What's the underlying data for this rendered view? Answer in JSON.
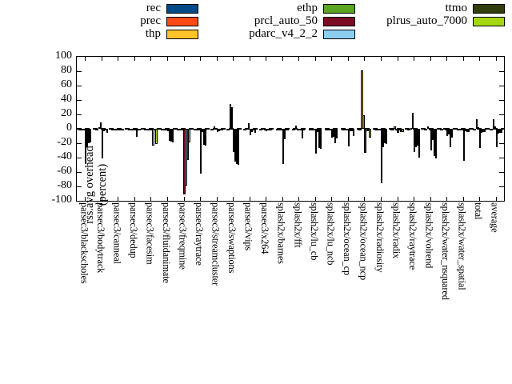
{
  "legend": {
    "columns": [
      [
        "rec",
        "prec",
        "thp"
      ],
      [
        "ethp",
        "prcl_auto_50",
        "pdarc_v4_2_2"
      ],
      [
        "ttmo",
        "plrus_auto_7000"
      ]
    ]
  },
  "axis": {
    "ylabel_line1": "rss.avg overhead",
    "ylabel_line2": "(percent)"
  },
  "chart_data": {
    "type": "bar",
    "title": "",
    "ylabel": "rss.avg overhead (percent)",
    "ylim": [
      -100,
      100
    ],
    "yticks": [
      100,
      80,
      60,
      40,
      20,
      0,
      -20,
      -40,
      -60,
      -80,
      -100
    ],
    "grid": false,
    "zero_line": "dashed",
    "legend_position": "top",
    "categories": [
      "parsec3/blackscholes",
      "parsec3/bodytrack",
      "parsec3/canneal",
      "parsec3/dedup",
      "parsec3/facesim",
      "parsec3/fluidanimate",
      "parsec3/freqmine",
      "parsec3/raytrace",
      "parsec3/streamcluster",
      "parsec3/swaptions",
      "parsec3/vips",
      "parsec3/x264",
      "splash2x/barnes",
      "splash2x/fft",
      "splash2x/lu_cb",
      "splash2x/lu_ncb",
      "splash2x/ocean_cp",
      "splash2x/ocean_ncp",
      "splash2x/radiosity",
      "splash2x/radix",
      "splash2x/raytrace",
      "splash2x/volrend",
      "splash2x/water_nsquared",
      "splash2x/water_spatial",
      "total",
      "average"
    ],
    "series": [
      {
        "name": "rec",
        "color": "#004a87",
        "values": [
          -2,
          -1,
          -1,
          -1,
          -1,
          -1,
          -2,
          -2,
          -1,
          -2,
          -1,
          -1,
          -1,
          -1,
          -1,
          -1,
          -2,
          -2,
          -2,
          -1,
          -2,
          -1,
          -1,
          -1,
          -1,
          -1
        ]
      },
      {
        "name": "prec",
        "color": "#fb4a14",
        "values": [
          -2,
          -1,
          -1,
          -1,
          -1,
          -1,
          -2,
          -2,
          -1,
          -2,
          -1,
          -1,
          -1,
          -1,
          -1,
          -1,
          -2,
          -2,
          -2,
          -1,
          -2,
          -1,
          -1,
          -1,
          -1,
          -1
        ]
      },
      {
        "name": "thp",
        "color": "#fdc328",
        "values": [
          -2,
          2,
          -1,
          -1,
          -1,
          -1,
          -2,
          -2,
          3,
          34,
          1,
          1,
          -1,
          4,
          -1,
          -1,
          -2,
          81,
          -2,
          3,
          1,
          3,
          1,
          -1,
          13,
          13
        ]
      },
      {
        "name": "ethp",
        "color": "#59a420",
        "values": [
          -2,
          9,
          -1,
          -1,
          -1,
          -1,
          -2,
          -2,
          1,
          30,
          8,
          -1,
          -1,
          -1,
          -1,
          -1,
          -2,
          19,
          -2,
          -1,
          22,
          -1,
          -1,
          -1,
          2,
          3
        ]
      },
      {
        "name": "prcl_auto_50",
        "color": "#7c0c23",
        "values": [
          -49,
          -41,
          -2,
          -2,
          -2,
          -3,
          -91,
          -62,
          -4,
          -32,
          -9,
          -3,
          -49,
          -2,
          -34,
          -12,
          -24,
          -33,
          -76,
          -6,
          -32,
          -30,
          -10,
          -44,
          -27,
          -26
        ]
      },
      {
        "name": "pdarc_v4_2_2",
        "color": "#8dcdf0",
        "values": [
          -26,
          -3,
          -1,
          -11,
          -23,
          -17,
          -79,
          -4,
          -3,
          -45,
          -4,
          -1,
          -14,
          -2,
          -4,
          -11,
          -3,
          -3,
          -25,
          -2,
          -25,
          -15,
          -8,
          -3,
          -6,
          -7
        ]
      },
      {
        "name": "ttmo",
        "color": "#303f08",
        "values": [
          -20,
          -2,
          -1,
          -1,
          -2,
          -18,
          -43,
          -22,
          -2,
          -49,
          -2,
          -1,
          -2,
          -13,
          -27,
          -20,
          -3,
          -3,
          -20,
          -4,
          -23,
          -38,
          -26,
          -4,
          -4,
          -5
        ]
      },
      {
        "name": "plrus_auto_7000",
        "color": "#a5d711",
        "values": [
          -19,
          -5,
          -1,
          -1,
          -21,
          -19,
          -19,
          -23,
          -2,
          -50,
          -5,
          -2,
          -2,
          -2,
          -28,
          -13,
          -10,
          -12,
          -21,
          -4,
          -40,
          -41,
          -12,
          -4,
          -4,
          -5
        ]
      }
    ]
  }
}
